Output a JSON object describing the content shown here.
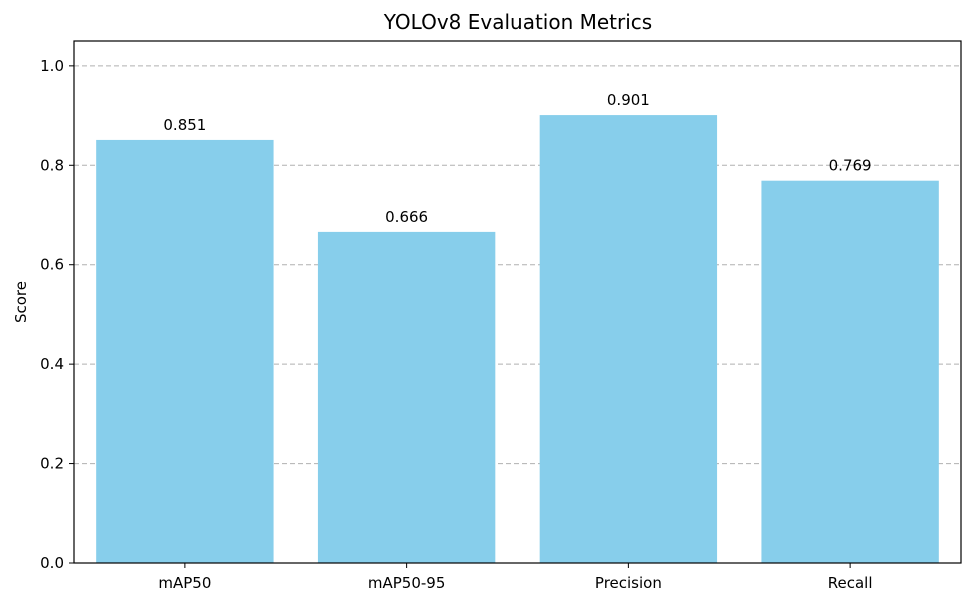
{
  "chart_data": {
    "type": "bar",
    "title": "YOLOv8 Evaluation Metrics",
    "xlabel": "",
    "ylabel": "Score",
    "categories": [
      "mAP50",
      "mAP50-95",
      "Precision",
      "Recall"
    ],
    "values": [
      0.851,
      0.666,
      0.901,
      0.769
    ],
    "value_labels": [
      "0.851",
      "0.666",
      "0.901",
      "0.769"
    ],
    "ylim": [
      0,
      1.05
    ],
    "yticks": [
      0.0,
      0.2,
      0.4,
      0.6,
      0.8,
      1.0
    ],
    "ytick_labels": [
      "0.0",
      "0.2",
      "0.4",
      "0.6",
      "0.8",
      "1.0"
    ],
    "bar_color": "#87ceeb",
    "grid": "y-dashed",
    "legend": "none"
  }
}
